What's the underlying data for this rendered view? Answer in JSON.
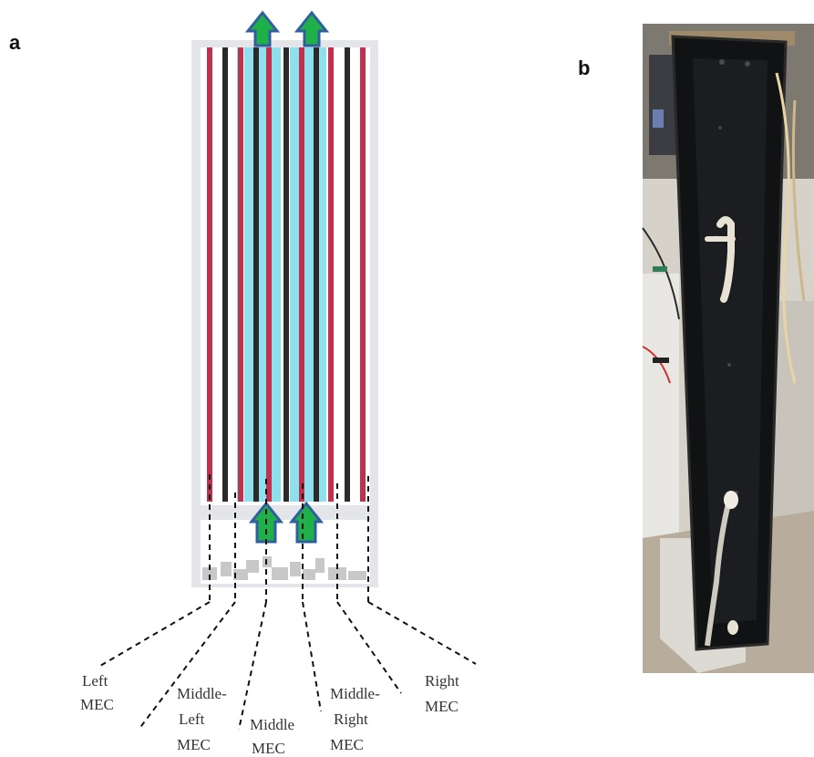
{
  "panel_a": {
    "letter": "a",
    "colors": {
      "frame": "#e3e5e8",
      "anode": "#c0304f",
      "cathode": "#2a2a2a",
      "channel": "#8fe0ec",
      "arrow_fill": "#20b04a",
      "arrow_stroke": "#2f5f9e",
      "spacer": "#c8c8c8"
    },
    "labels": [
      {
        "lines": [
          "Left",
          "MEC"
        ]
      },
      {
        "lines": [
          "Middle-",
          "Left",
          "MEC"
        ]
      },
      {
        "lines": [
          "Middle",
          "MEC"
        ]
      },
      {
        "lines": [
          "Middle-",
          "Right",
          "MEC"
        ]
      },
      {
        "lines": [
          "Right",
          "MEC"
        ]
      }
    ]
  },
  "panel_b": {
    "letter": "b"
  }
}
